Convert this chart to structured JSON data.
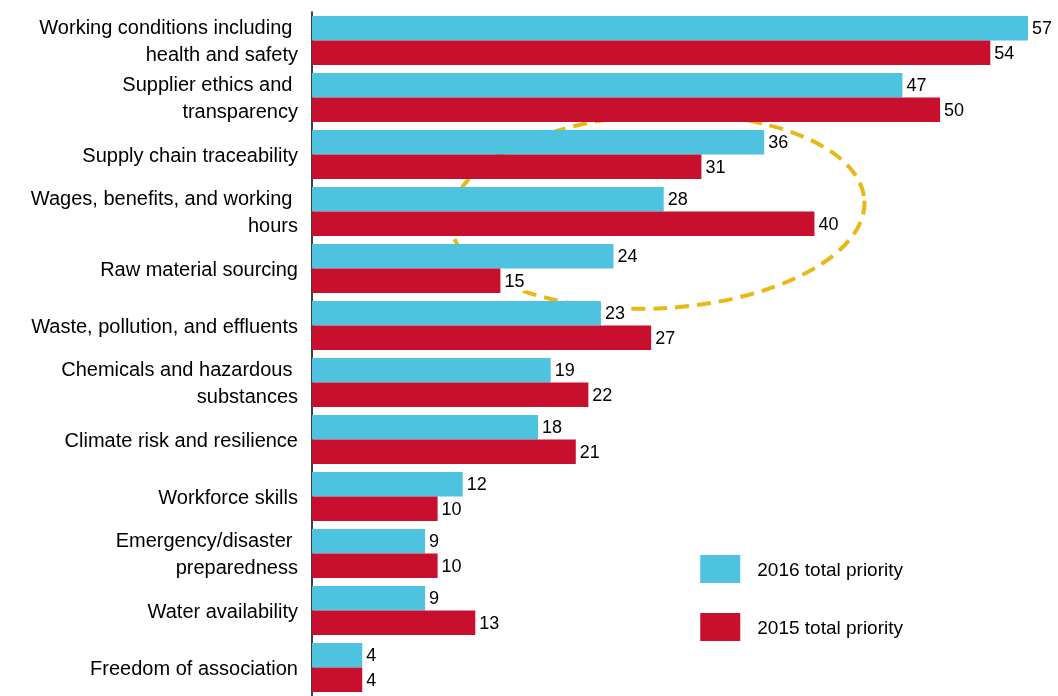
{
  "chart_data": {
    "type": "bar",
    "orientation": "horizontal",
    "categories": [
      "Working conditions including health and safety",
      "Supplier ethics and transparency",
      "Supply chain traceability",
      "Wages, benefits, and working hours",
      "Raw material sourcing",
      "Waste, pollution, and effluents",
      "Chemicals and hazardous substances",
      "Climate risk and resilience",
      "Workforce skills",
      "Emergency/disaster preparedness",
      "Water availability",
      "Freedom of association"
    ],
    "series": [
      {
        "name": "2016 total priority",
        "color": "#4ec3df",
        "values": [
          57,
          47,
          36,
          28,
          24,
          23,
          19,
          18,
          12,
          9,
          9,
          4
        ]
      },
      {
        "name": "2015 total priority",
        "color": "#c8102e",
        "values": [
          54,
          50,
          31,
          40,
          15,
          27,
          22,
          21,
          10,
          10,
          13,
          4
        ]
      }
    ],
    "data_labels": true,
    "legend": "bottom right"
  }
}
